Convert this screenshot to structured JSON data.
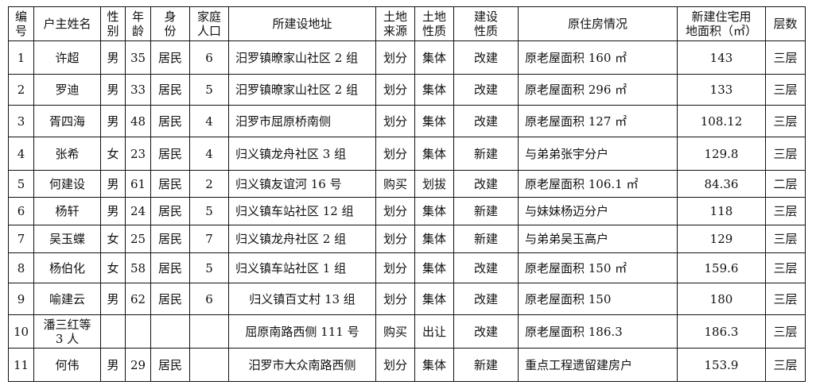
{
  "headers": [
    "编\n号",
    "户主姓名",
    "性\n别",
    "年\n龄",
    "身\n份",
    "家庭\n人口",
    "所建设地址",
    "土地\n来源",
    "土地\n性质",
    "建设\n性质",
    "原住房情况",
    "新建住宅用\n地面积（㎡）",
    "层数"
  ],
  "rows": [
    [
      "1",
      "许超",
      "男",
      "35",
      "居民",
      "6",
      "汨罗镇暸家山社区 2 组",
      "划分",
      "集体",
      "改建",
      "原老屋面积 160 ㎡",
      "143",
      "三层"
    ],
    [
      "2",
      "罗迪",
      "男",
      "33",
      "居民",
      "5",
      "汨罗镇暸家山社区 2 组",
      "划分",
      "集体",
      "改建",
      "原老屋面积 296 ㎡",
      "133",
      "三层"
    ],
    [
      "3",
      "胥四海",
      "男",
      "48",
      "居民",
      "4",
      "汨罗市屈原桥南侧",
      "划分",
      "集体",
      "改建",
      "原老屋面积 127 ㎡",
      "108.12",
      "三层"
    ],
    [
      "4",
      "张希",
      "女",
      "23",
      "居民",
      "4",
      "归义镇龙舟社区 3 组",
      "划分",
      "集体",
      "新建",
      "与弟弟张宇分户",
      "129.8",
      "三层"
    ],
    [
      "5",
      "何建设",
      "男",
      "61",
      "居民",
      "2",
      "归义镇友谊河 16 号",
      "购买",
      "划拔",
      "改建",
      "原老屋面积 106.1 ㎡",
      "84.36",
      "二层"
    ],
    [
      "6",
      "杨轩",
      "男",
      "24",
      "居民",
      "5",
      "归义镇车站社区 12 组",
      "划分",
      "集体",
      "新建",
      "与妹妹杨迈分户",
      "118",
      "三层"
    ],
    [
      "7",
      "吴玉蝶",
      "女",
      "25",
      "居民",
      "7",
      "归义镇龙舟社区 2 组",
      "划分",
      "集体",
      "新建",
      "与弟弟吴玉高户",
      "129",
      "三层"
    ],
    [
      "8",
      "杨伯化",
      "女",
      "58",
      "居民",
      "5",
      "归义镇车站社区 1 组",
      "划分",
      "集体",
      "改建",
      "原老屋面积 150 ㎡",
      "159.6",
      "三层"
    ],
    [
      "9",
      "喻建云",
      "男",
      "62",
      "居民",
      "6",
      "归义镇百丈村 13 组",
      "划分",
      "集体",
      "改建",
      "原老屋面积 150",
      "180",
      "三层"
    ],
    [
      "10",
      "潘三红等\n3 人",
      "",
      "",
      "",
      "",
      "屈原南路西侧 111 号",
      "购买",
      "出让",
      "改建",
      "原老屋面积 186.3",
      "186.3",
      "三层"
    ],
    [
      "11",
      "何伟",
      "男",
      "29",
      "居民",
      "",
      "汨罗市大众南路西侧",
      "划分",
      "集体",
      "新建",
      "重点工程遗留建房户",
      "153.9",
      "三层"
    ]
  ]
}
